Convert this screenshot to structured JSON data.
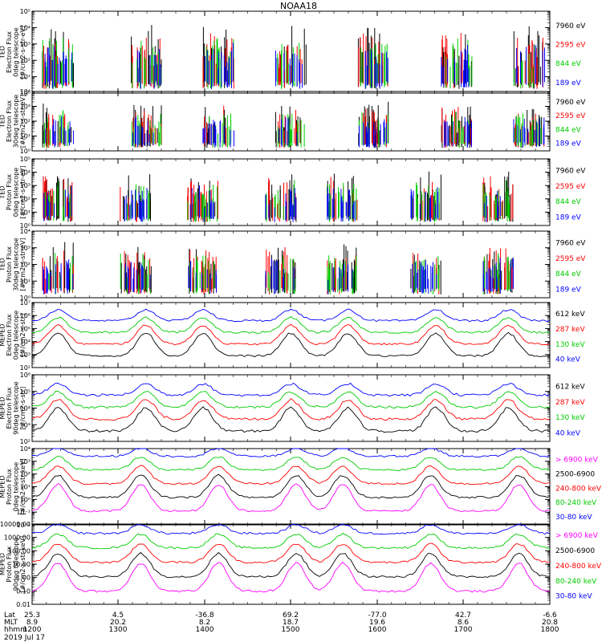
{
  "title": "NOAA18",
  "footer": {
    "date": "2019 Jul 17",
    "rows": [
      {
        "label": "Lat",
        "values": [
          "25.3",
          "4.5",
          "-36.8",
          "69.2",
          "-77.0",
          "42.7",
          "-6.6"
        ]
      },
      {
        "label": "MLT",
        "values": [
          "8.9",
          "20.2",
          "8.2",
          "18.7",
          "19.6",
          "8.6",
          "20.8"
        ]
      },
      {
        "label": "hhmm",
        "values": [
          "1200",
          "1300",
          "1400",
          "1500",
          "1600",
          "1700",
          "1800"
        ]
      }
    ]
  },
  "chart_data": [
    {
      "type": "scatter",
      "scale": "log",
      "ylabel": [
        "TED",
        "Electron Flux",
        "0deg telescope",
        "[#/cm2-s-str-eV]"
      ],
      "ytick_labels": [
        "10⁰",
        "10¹",
        "10²",
        "10³",
        "10⁴",
        "10⁵"
      ],
      "ylog": [
        0,
        5
      ],
      "legend": [
        {
          "label": "7960 eV",
          "color": "#000000"
        },
        {
          "label": "2595 eV",
          "color": "#ff0000"
        },
        {
          "label": "844 eV",
          "color": "#00cc00"
        },
        {
          "label": "189 eV",
          "color": "#0000ff"
        }
      ]
    },
    {
      "type": "scatter",
      "scale": "log",
      "ylabel": [
        "TED",
        "Electron Flux",
        "30deg telescope",
        "[#/cm2-s-str-eV]"
      ],
      "ytick_labels": [
        "10⁰",
        "10¹",
        "10²",
        "10³",
        "10⁴"
      ],
      "ylog": [
        0,
        4
      ],
      "legend": [
        {
          "label": "7960 eV",
          "color": "#000000"
        },
        {
          "label": "2595 eV",
          "color": "#ff0000"
        },
        {
          "label": "844 eV",
          "color": "#00cc00"
        },
        {
          "label": "189 eV",
          "color": "#0000ff"
        }
      ]
    },
    {
      "type": "scatter",
      "scale": "log",
      "ylabel": [
        "TED",
        "Proton Flux",
        "0deg telescope",
        "[#/cm2-s-str-eV]"
      ],
      "ytick_labels": [
        "10⁰",
        "10¹",
        "10²",
        "10³",
        "10⁴",
        "10⁵"
      ],
      "ylog": [
        0,
        5
      ],
      "legend": [
        {
          "label": "7960 eV",
          "color": "#000000"
        },
        {
          "label": "2595 eV",
          "color": "#ff0000"
        },
        {
          "label": "844 eV",
          "color": "#00cc00"
        },
        {
          "label": "189 eV",
          "color": "#0000ff"
        }
      ]
    },
    {
      "type": "scatter",
      "scale": "log",
      "ylabel": [
        "TED",
        "Proton Flux",
        "30deg telescope",
        "[#/cm2-s-str-eV]"
      ],
      "ytick_labels": [
        "10⁰",
        "10¹",
        "10²",
        "10³",
        "10⁴"
      ],
      "ylog": [
        0,
        4
      ],
      "legend": [
        {
          "label": "7960 eV",
          "color": "#000000"
        },
        {
          "label": "2595 eV",
          "color": "#ff0000"
        },
        {
          "label": "844 eV",
          "color": "#00cc00"
        },
        {
          "label": "189 eV",
          "color": "#0000ff"
        }
      ]
    },
    {
      "type": "line",
      "scale": "log",
      "ylabel": [
        "MEPED",
        "Electron Flux",
        "0deg telescope",
        "[#/cm2-s-str]"
      ],
      "ytick_labels": [
        "10²",
        "10³",
        "10⁴",
        "10⁵",
        "10⁶",
        "10⁷"
      ],
      "ylog": [
        2,
        7
      ],
      "legend": [
        {
          "label": "612 keV",
          "color": "#000000"
        },
        {
          "label": "287 keV",
          "color": "#ff0000"
        },
        {
          "label": "130 keV",
          "color": "#00cc00"
        },
        {
          "label": "40 keV",
          "color": "#0000ff"
        }
      ]
    },
    {
      "type": "line",
      "scale": "log",
      "ylabel": [
        "MEPED",
        "Electron Flux",
        "90deg telescope",
        "[#/cm2-s-str]"
      ],
      "ytick_labels": [
        "10²",
        "10³",
        "10⁴",
        "10⁵",
        "10⁶"
      ],
      "ylog": [
        2,
        6
      ],
      "legend": [
        {
          "label": "612 keV",
          "color": "#000000"
        },
        {
          "label": "287 keV",
          "color": "#ff0000"
        },
        {
          "label": "130 keV",
          "color": "#00cc00"
        },
        {
          "label": "40 keV",
          "color": "#0000ff"
        }
      ]
    },
    {
      "type": "line",
      "scale": "log",
      "ylabel": [
        "MEPED",
        "Proton Flux",
        "0deg telescope",
        "[#/cm2-s-str-keV]"
      ],
      "ytick_labels": [
        "10⁻²",
        "10⁻¹",
        "10⁰",
        "10¹",
        "10²",
        "10³",
        "10⁴"
      ],
      "ylog": [
        -2,
        4
      ],
      "legend": [
        {
          "label": "> 6900 keV",
          "color": "#ff00ff"
        },
        {
          "label": "2500-6900",
          "color": "#000000"
        },
        {
          "label": "240-800 keV",
          "color": "#ff0000"
        },
        {
          "label": "80-240 keV",
          "color": "#00cc00"
        },
        {
          "label": "30-80 keV",
          "color": "#0000ff"
        }
      ]
    },
    {
      "type": "line",
      "scale": "log",
      "ylabel": [
        "MEPED",
        "Proton Flux",
        "90deg telescope",
        "[#/cm2-s-str-keV]"
      ],
      "ytick_labels": [
        "0.01",
        "0.10",
        "1.00",
        "10.00",
        "100.00",
        "1000.00",
        "10000.00"
      ],
      "ylog": [
        -2,
        4
      ],
      "legend": [
        {
          "label": "> 6900 keV",
          "color": "#ff00ff"
        },
        {
          "label": "2500-6900",
          "color": "#000000"
        },
        {
          "label": "240-800 keV",
          "color": "#ff0000"
        },
        {
          "label": "80-240 keV",
          "color": "#00cc00"
        },
        {
          "label": "30-80 keV",
          "color": "#0000ff"
        }
      ]
    }
  ]
}
